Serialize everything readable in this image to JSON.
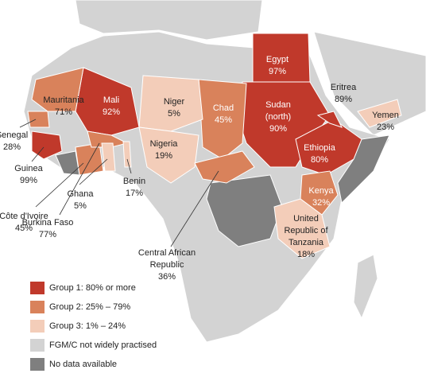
{
  "labels": [
    {
      "name": [
        "Egypt"
      ],
      "value": "97%"
    },
    {
      "name": [
        "Sudan",
        "(north)"
      ],
      "value": "90%"
    },
    {
      "name": [
        "Eritrea"
      ],
      "value": "89%"
    },
    {
      "name": [
        "Yemen"
      ],
      "value": "23%"
    },
    {
      "name": [
        "Ethiopia"
      ],
      "value": "80%"
    },
    {
      "name": [
        "Kenya"
      ],
      "value": "32%"
    },
    {
      "name": [
        "United",
        "Republic of",
        "Tanzania"
      ],
      "value": "18%"
    },
    {
      "name": [
        "Chad"
      ],
      "value": "45%"
    },
    {
      "name": [
        "Niger"
      ],
      "value": "5%"
    },
    {
      "name": [
        "Nigeria"
      ],
      "value": "19%"
    },
    {
      "name": [
        "Mali"
      ],
      "value": "92%"
    },
    {
      "name": [
        "Mauritania"
      ],
      "value": "71%"
    },
    {
      "name": [
        "Senegal"
      ],
      "value": "28%"
    },
    {
      "name": [
        "Guinea"
      ],
      "value": "99%"
    },
    {
      "name": [
        "Côte d'Ivoire"
      ],
      "value": "45%"
    },
    {
      "name": [
        "Ghana"
      ],
      "value": "5%"
    },
    {
      "name": [
        "Benin"
      ],
      "value": "17%"
    },
    {
      "name": [
        "Burkina Faso"
      ],
      "value": "77%"
    },
    {
      "name": [
        "Central African",
        "Republic"
      ],
      "value": "36%"
    }
  ],
  "legend": [
    {
      "label": "Group 1: 80% or more",
      "color": "#c0392b"
    },
    {
      "label": "Group 2: 25% – 79%",
      "color": "#d9825b"
    },
    {
      "label": "Group 3: 1% – 24%",
      "color": "#f3cdb9"
    },
    {
      "label": "FGM/C not widely practised",
      "color": "#d3d3d3"
    },
    {
      "label": "No data available",
      "color": "#7f7f7f"
    }
  ]
}
